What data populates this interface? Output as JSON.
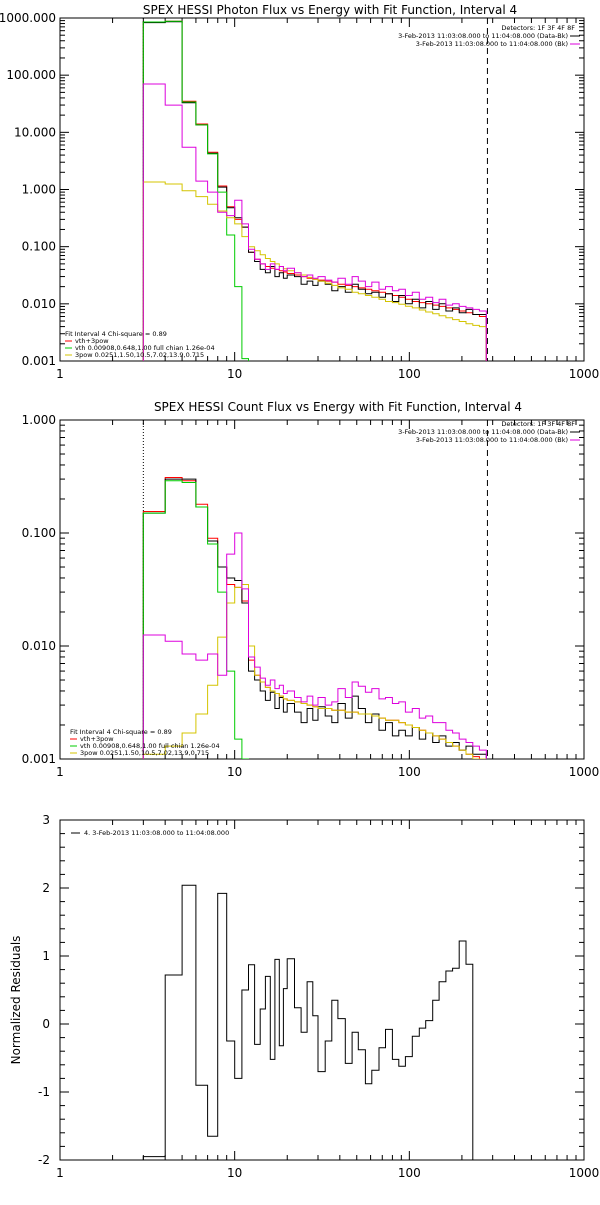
{
  "panels": [
    {
      "title": "SPEX HESSI Photon Flux vs Energy with Fit Function, Interval 4",
      "y_tick_labels": [
        "0.001",
        "0.010",
        "0.100",
        "1.000",
        "10.000",
        "100.000",
        "1000.000"
      ],
      "x_tick_labels": [
        "1",
        "10",
        "100",
        "1000"
      ],
      "info_right": [
        "Detectors: 1F 3F 4F 8F",
        "3-Feb-2013 11:03:08.000 to 11:04:08.000 (Data-Bk)",
        "3-Feb-2013 11:03:08.000 to 11:04:08.000 (Bk)"
      ],
      "legend_left": [
        "Fit Interval 4   Chi-square = 0.89",
        "vth+3pow",
        "vth 0.00908,0.648,1.00   full chian 1.26e-04",
        "3pow 0.0251,1.50,10.5,7.02,13.9,0.715"
      ]
    },
    {
      "title": "SPEX HESSI Count Flux vs Energy with Fit Function, Interval 4",
      "y_tick_labels": [
        "0.001",
        "0.010",
        "0.100",
        "1.000"
      ],
      "x_tick_labels": [
        "1",
        "10",
        "100",
        "1000"
      ],
      "info_right": [
        "Detectors: 1F 3F 4F 8F",
        "3-Feb-2013 11:03:08.000 to 11:04:08.000 (Data-Bk)",
        "3-Feb-2013 11:03:08.000 to 11:04:08.000 (Bk)"
      ],
      "legend_left": [
        "Fit Interval 4   Chi-square = 0.89",
        "vth+3pow",
        "vth 0.00908,0.648,1.00   full chian 1.26e-04",
        "3pow 0.0251,1.50,10.5,7.02,13.9,0.715"
      ]
    },
    {
      "title": "",
      "ylabel": "Normalized Residuals",
      "y_tick_labels": [
        "-2",
        "-1",
        "0",
        "1",
        "2",
        "3"
      ],
      "x_tick_labels": [
        "1",
        "10",
        "100",
        "1000"
      ],
      "legend_left": [
        "4.  3-Feb-2013 11:03:08.000 to 11:04:08.000"
      ]
    }
  ],
  "colors": {
    "data": "#000000",
    "total": "#ff0000",
    "vth": "#00cc00",
    "pow": "#d4c400",
    "bk": "#dd00dd"
  },
  "chart_data": [
    {
      "type": "line",
      "scale": "log-log",
      "title": "SPEX HESSI Photon Flux vs Energy with Fit Function, Interval 4",
      "xlim": [
        1,
        1000
      ],
      "ylim": [
        0.001,
        1000
      ],
      "fit_range": [
        3,
        280
      ],
      "edges": [
        3,
        4,
        5,
        6,
        7,
        8,
        9,
        10,
        11,
        12,
        13,
        14,
        15,
        16,
        17,
        18,
        19,
        20,
        22,
        24,
        26,
        28,
        30,
        33,
        36,
        39,
        43,
        47,
        51,
        56,
        61,
        67,
        73,
        80,
        87,
        95,
        104,
        114,
        124,
        136,
        148,
        162,
        177,
        193,
        211,
        231,
        252,
        276
      ],
      "series": [
        {
          "name": "vth+3pow",
          "color": "#ff0000",
          "values": [
            850,
            880,
            35,
            14,
            4.5,
            1.15,
            0.5,
            0.3,
            0.22,
            0.08,
            0.06,
            0.05,
            0.045,
            0.042,
            0.04,
            0.038,
            0.036,
            0.034,
            0.032,
            0.03,
            0.028,
            0.027,
            0.026,
            0.025,
            0.024,
            0.022,
            0.021,
            0.02,
            0.019,
            0.018,
            0.017,
            0.016,
            0.015,
            0.014,
            0.013,
            0.012,
            0.011,
            0.0105,
            0.01,
            0.0095,
            0.009,
            0.0085,
            0.008,
            0.0075,
            0.007,
            0.0065,
            0.006
          ]
        },
        {
          "name": "",
          "color": "#000000",
          "values": [
            830,
            860,
            33,
            13.5,
            4.3,
            1.1,
            0.48,
            0.32,
            0.22,
            0.08,
            0.055,
            0.04,
            0.035,
            0.045,
            0.03,
            0.035,
            0.028,
            0.032,
            0.03,
            0.022,
            0.025,
            0.021,
            0.025,
            0.022,
            0.017,
            0.02,
            0.016,
            0.022,
            0.018,
            0.015,
            0.016,
            0.013,
            0.015,
            0.011,
            0.014,
            0.01,
            0.012,
            0.0085,
            0.011,
            0.008,
            0.01,
            0.0075,
            0.0085,
            0.007,
            0.008,
            0.0065,
            0.0065
          ]
        },
        {
          "name": "vth",
          "color": "#00cc00",
          "values": [
            850,
            880,
            34,
            13.5,
            4.2,
            0.9,
            0.16,
            0.02,
            0.0011
          ]
        },
        {
          "name": "3pow",
          "color": "#d4c400",
          "values": [
            1.35,
            1.25,
            0.95,
            0.75,
            0.55,
            0.42,
            0.32,
            0.25,
            0.15,
            0.1,
            0.085,
            0.072,
            0.062,
            0.055,
            0.05,
            0.045,
            0.041,
            0.038,
            0.035,
            0.032,
            0.029,
            0.027,
            0.025,
            0.023,
            0.021,
            0.019,
            0.018,
            0.016,
            0.015,
            0.014,
            0.013,
            0.012,
            0.011,
            0.0105,
            0.0098,
            0.0091,
            0.0085,
            0.0078,
            0.0072,
            0.0067,
            0.0062,
            0.0057,
            0.0053,
            0.0049,
            0.0045,
            0.0042,
            0.004
          ]
        },
        {
          "name": "",
          "color": "#dd00dd",
          "values": [
            70,
            30,
            5.5,
            1.4,
            0.9,
            0.4,
            0.35,
            0.65,
            0.25,
            0.09,
            0.06,
            0.05,
            0.04,
            0.05,
            0.04,
            0.045,
            0.038,
            0.042,
            0.035,
            0.03,
            0.032,
            0.028,
            0.03,
            0.026,
            0.024,
            0.028,
            0.022,
            0.03,
            0.025,
            0.02,
            0.024,
            0.018,
            0.02,
            0.017,
            0.018,
            0.014,
            0.016,
            0.012,
            0.013,
            0.0105,
            0.012,
            0.0095,
            0.01,
            0.009,
            0.0085,
            0.008,
            0.0075
          ]
        }
      ]
    },
    {
      "type": "line",
      "scale": "log-log",
      "title": "SPEX HESSI Count Flux vs Energy with Fit Function, Interval 4",
      "xlim": [
        1,
        1000
      ],
      "ylim": [
        0.001,
        1
      ],
      "fit_range": [
        3,
        280
      ],
      "edges": [
        3,
        4,
        5,
        6,
        7,
        8,
        9,
        10,
        11,
        12,
        13,
        14,
        15,
        16,
        17,
        18,
        19,
        20,
        22,
        24,
        26,
        28,
        30,
        33,
        36,
        39,
        43,
        47,
        51,
        56,
        61,
        67,
        73,
        80,
        87,
        95,
        104,
        114,
        124,
        136,
        148,
        162,
        177,
        193,
        211,
        231,
        252,
        276
      ],
      "series": [
        {
          "name": "vth+3pow",
          "color": "#ff0000",
          "values": [
            0.155,
            0.31,
            0.29,
            0.18,
            0.09,
            0.05,
            0.035,
            0.033,
            0.025,
            0.0075,
            0.0055,
            0.0048,
            0.0043,
            0.004,
            0.0038,
            0.0036,
            0.0034,
            0.0033,
            0.0032,
            0.0031,
            0.003,
            0.0029,
            0.0028,
            0.0028,
            0.0027,
            0.0027,
            0.0026,
            0.0026,
            0.0025,
            0.0025,
            0.0024,
            0.0023,
            0.0022,
            0.0022,
            0.0021,
            0.002,
            0.0019,
            0.0018,
            0.0017,
            0.0016,
            0.0015,
            0.0014,
            0.0013,
            0.0012,
            0.0011,
            0.00105,
            0.001
          ]
        },
        {
          "name": "",
          "color": "#000000",
          "values": [
            0.15,
            0.3,
            0.3,
            0.17,
            0.085,
            0.05,
            0.04,
            0.038,
            0.024,
            0.006,
            0.005,
            0.004,
            0.0033,
            0.0039,
            0.0028,
            0.0035,
            0.0026,
            0.0031,
            0.0026,
            0.0021,
            0.0028,
            0.0022,
            0.0029,
            0.0024,
            0.0021,
            0.0031,
            0.0023,
            0.0036,
            0.0028,
            0.0021,
            0.0025,
            0.0018,
            0.0021,
            0.0016,
            0.0018,
            0.0016,
            0.0019,
            0.0015,
            0.0017,
            0.0014,
            0.0016,
            0.0013,
            0.0014,
            0.0012,
            0.0013,
            0.0011,
            0.0011
          ]
        },
        {
          "name": "vth",
          "color": "#00cc00",
          "values": [
            0.15,
            0.29,
            0.28,
            0.17,
            0.08,
            0.03,
            0.006,
            0.0015,
            0.0009
          ]
        },
        {
          "name": "3pow",
          "color": "#d4c400",
          "values": [
            0.0011,
            0.0013,
            0.0017,
            0.0025,
            0.0045,
            0.012,
            0.024,
            0.033,
            0.035,
            0.01,
            0.0055,
            0.0048,
            0.0043,
            0.004,
            0.0038,
            0.0036,
            0.0034,
            0.0033,
            0.0032,
            0.0031,
            0.003,
            0.0029,
            0.0028,
            0.0028,
            0.0027,
            0.0027,
            0.0026,
            0.0026,
            0.0025,
            0.0025,
            0.0024,
            0.0023,
            0.0022,
            0.0022,
            0.0021,
            0.002,
            0.0019,
            0.0018,
            0.0017,
            0.0016,
            0.0015,
            0.0014,
            0.0013,
            0.0012,
            0.0011,
            0.00095,
            0.0008
          ]
        },
        {
          "name": "",
          "color": "#dd00dd",
          "values": [
            0.0125,
            0.011,
            0.0085,
            0.0075,
            0.0085,
            0.0055,
            0.065,
            0.1,
            0.032,
            0.008,
            0.0065,
            0.0052,
            0.0045,
            0.005,
            0.0042,
            0.0045,
            0.0038,
            0.004,
            0.0035,
            0.0032,
            0.0036,
            0.003,
            0.0035,
            0.003,
            0.0032,
            0.0042,
            0.0035,
            0.0048,
            0.0044,
            0.0039,
            0.0042,
            0.0034,
            0.0035,
            0.0031,
            0.0032,
            0.0026,
            0.0028,
            0.0023,
            0.0024,
            0.0021,
            0.0021,
            0.0018,
            0.0017,
            0.0015,
            0.0014,
            0.0013,
            0.0012
          ]
        }
      ]
    },
    {
      "type": "line",
      "scale": "log-linear",
      "ylabel": "Normalized Residuals",
      "xlim": [
        1,
        1000
      ],
      "ylim": [
        -2,
        3
      ],
      "edges": [
        3,
        4,
        5,
        6,
        7,
        8,
        9,
        10,
        11,
        12,
        13,
        14,
        15,
        16,
        17,
        18,
        19,
        20,
        22,
        24,
        26,
        28,
        30,
        33,
        36,
        39,
        43,
        47,
        51,
        56,
        61,
        67,
        73,
        80,
        87,
        95,
        104,
        114,
        124,
        136,
        148,
        162,
        177,
        193,
        211,
        231,
        252,
        276
      ],
      "series": [
        {
          "name": "4.  3-Feb-2013 11:03:08.000 to 11:04:08.000",
          "color": "#000000",
          "values": [
            -1.95,
            0.72,
            2.04,
            -0.9,
            -1.65,
            1.92,
            -0.25,
            -0.8,
            0.5,
            0.87,
            -0.3,
            0.22,
            0.7,
            -0.52,
            0.95,
            -0.32,
            0.52,
            0.96,
            0.24,
            -0.12,
            0.62,
            0.12,
            -0.7,
            -0.25,
            0.35,
            0.08,
            -0.58,
            -0.12,
            -0.38,
            -0.88,
            -0.68,
            -0.35,
            -0.08,
            -0.52,
            -0.62,
            -0.48,
            -0.18,
            -0.06,
            0.05,
            0.35,
            0.62,
            0.78,
            0.82,
            1.22,
            0.88,
            -2.0,
            -2.0
          ]
        }
      ]
    }
  ]
}
